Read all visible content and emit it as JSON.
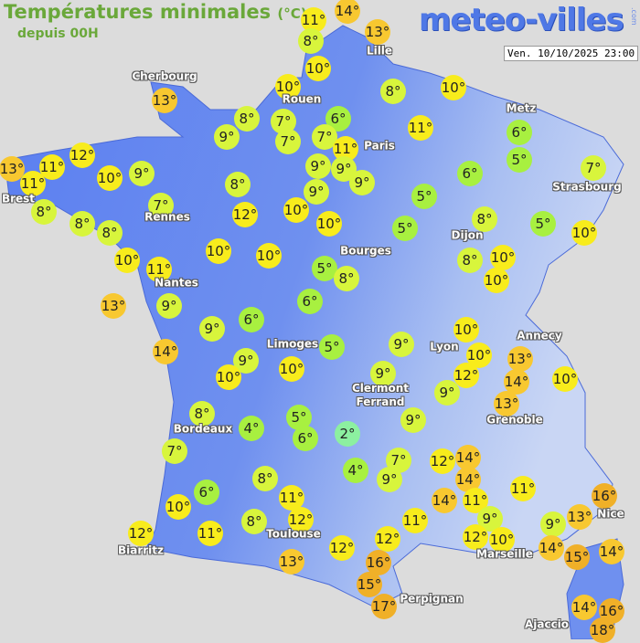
{
  "header": {
    "title": "Températures minimales",
    "unit": "(°C)",
    "subtitle": "depuis 00H",
    "logo": "meteo-villes",
    "logo_suffix": ".com",
    "timestamp": "Ven. 10/10/2025 23:00"
  },
  "colors": {
    "land_west": "#5a7ef0",
    "land_east": "#b4c6f2",
    "background": "#dcdcdc",
    "temp_cold": "#8cf0a0",
    "temp_cool": "#a8f040",
    "temp_mild": "#d8f53c",
    "temp_warm": "#f8ec1c",
    "temp_warmer": "#f8c830",
    "temp_hot": "#f0b028"
  },
  "cities": [
    "Cherbourg",
    "Lille",
    "Rouen",
    "Metz",
    "Paris",
    "Brest",
    "Strasbourg",
    "Rennes",
    "Dijon",
    "Bourges",
    "Nantes",
    "Limoges",
    "Lyon",
    "Annecy",
    "Clermont\nFerrand",
    "Grenoble",
    "Bordeaux",
    "Nice",
    "Toulouse",
    "Biarritz",
    "Marseille",
    "Perpignan",
    "Ajaccio"
  ],
  "temperatures": [
    "11°",
    "14°",
    "8°",
    "13°",
    "10°",
    "10°",
    "8°",
    "10°",
    "13°",
    "8°",
    "7°",
    "6°",
    "9°",
    "7°",
    "7°",
    "11°",
    "11°",
    "6°",
    "12°",
    "13°",
    "11°",
    "11°",
    "10°",
    "9°",
    "9°",
    "9°",
    "9°",
    "6°",
    "5°",
    "7°",
    "8°",
    "9°",
    "7°",
    "8°",
    "8°",
    "8°",
    "12°",
    "10°",
    "10°",
    "5°",
    "5°",
    "8°",
    "5°",
    "10°",
    "10°",
    "11°",
    "10°",
    "10°",
    "5°",
    "8°",
    "8°",
    "10°",
    "10°",
    "13°",
    "9°",
    "6°",
    "9°",
    "6°",
    "14°",
    "5°",
    "9°",
    "10°",
    "10°",
    "13°",
    "14°",
    "10°",
    "12°",
    "9°",
    "10°",
    "10°",
    "9°",
    "9°",
    "13°",
    "8°",
    "5°",
    "6°",
    "2°",
    "9°",
    "4°",
    "7°",
    "7°",
    "12°",
    "14°",
    "4°",
    "9°",
    "8°",
    "6°",
    "14°",
    "11°",
    "14°",
    "11°",
    "11°",
    "10°",
    "16°",
    "13°",
    "9°",
    "11°",
    "12°",
    "8°",
    "11°",
    "12°",
    "12°",
    "12°",
    "10°",
    "9°",
    "14°",
    "12°",
    "13°",
    "16°",
    "15°",
    "15°",
    "14°",
    "17°",
    "14°",
    "16°",
    "18°"
  ]
}
